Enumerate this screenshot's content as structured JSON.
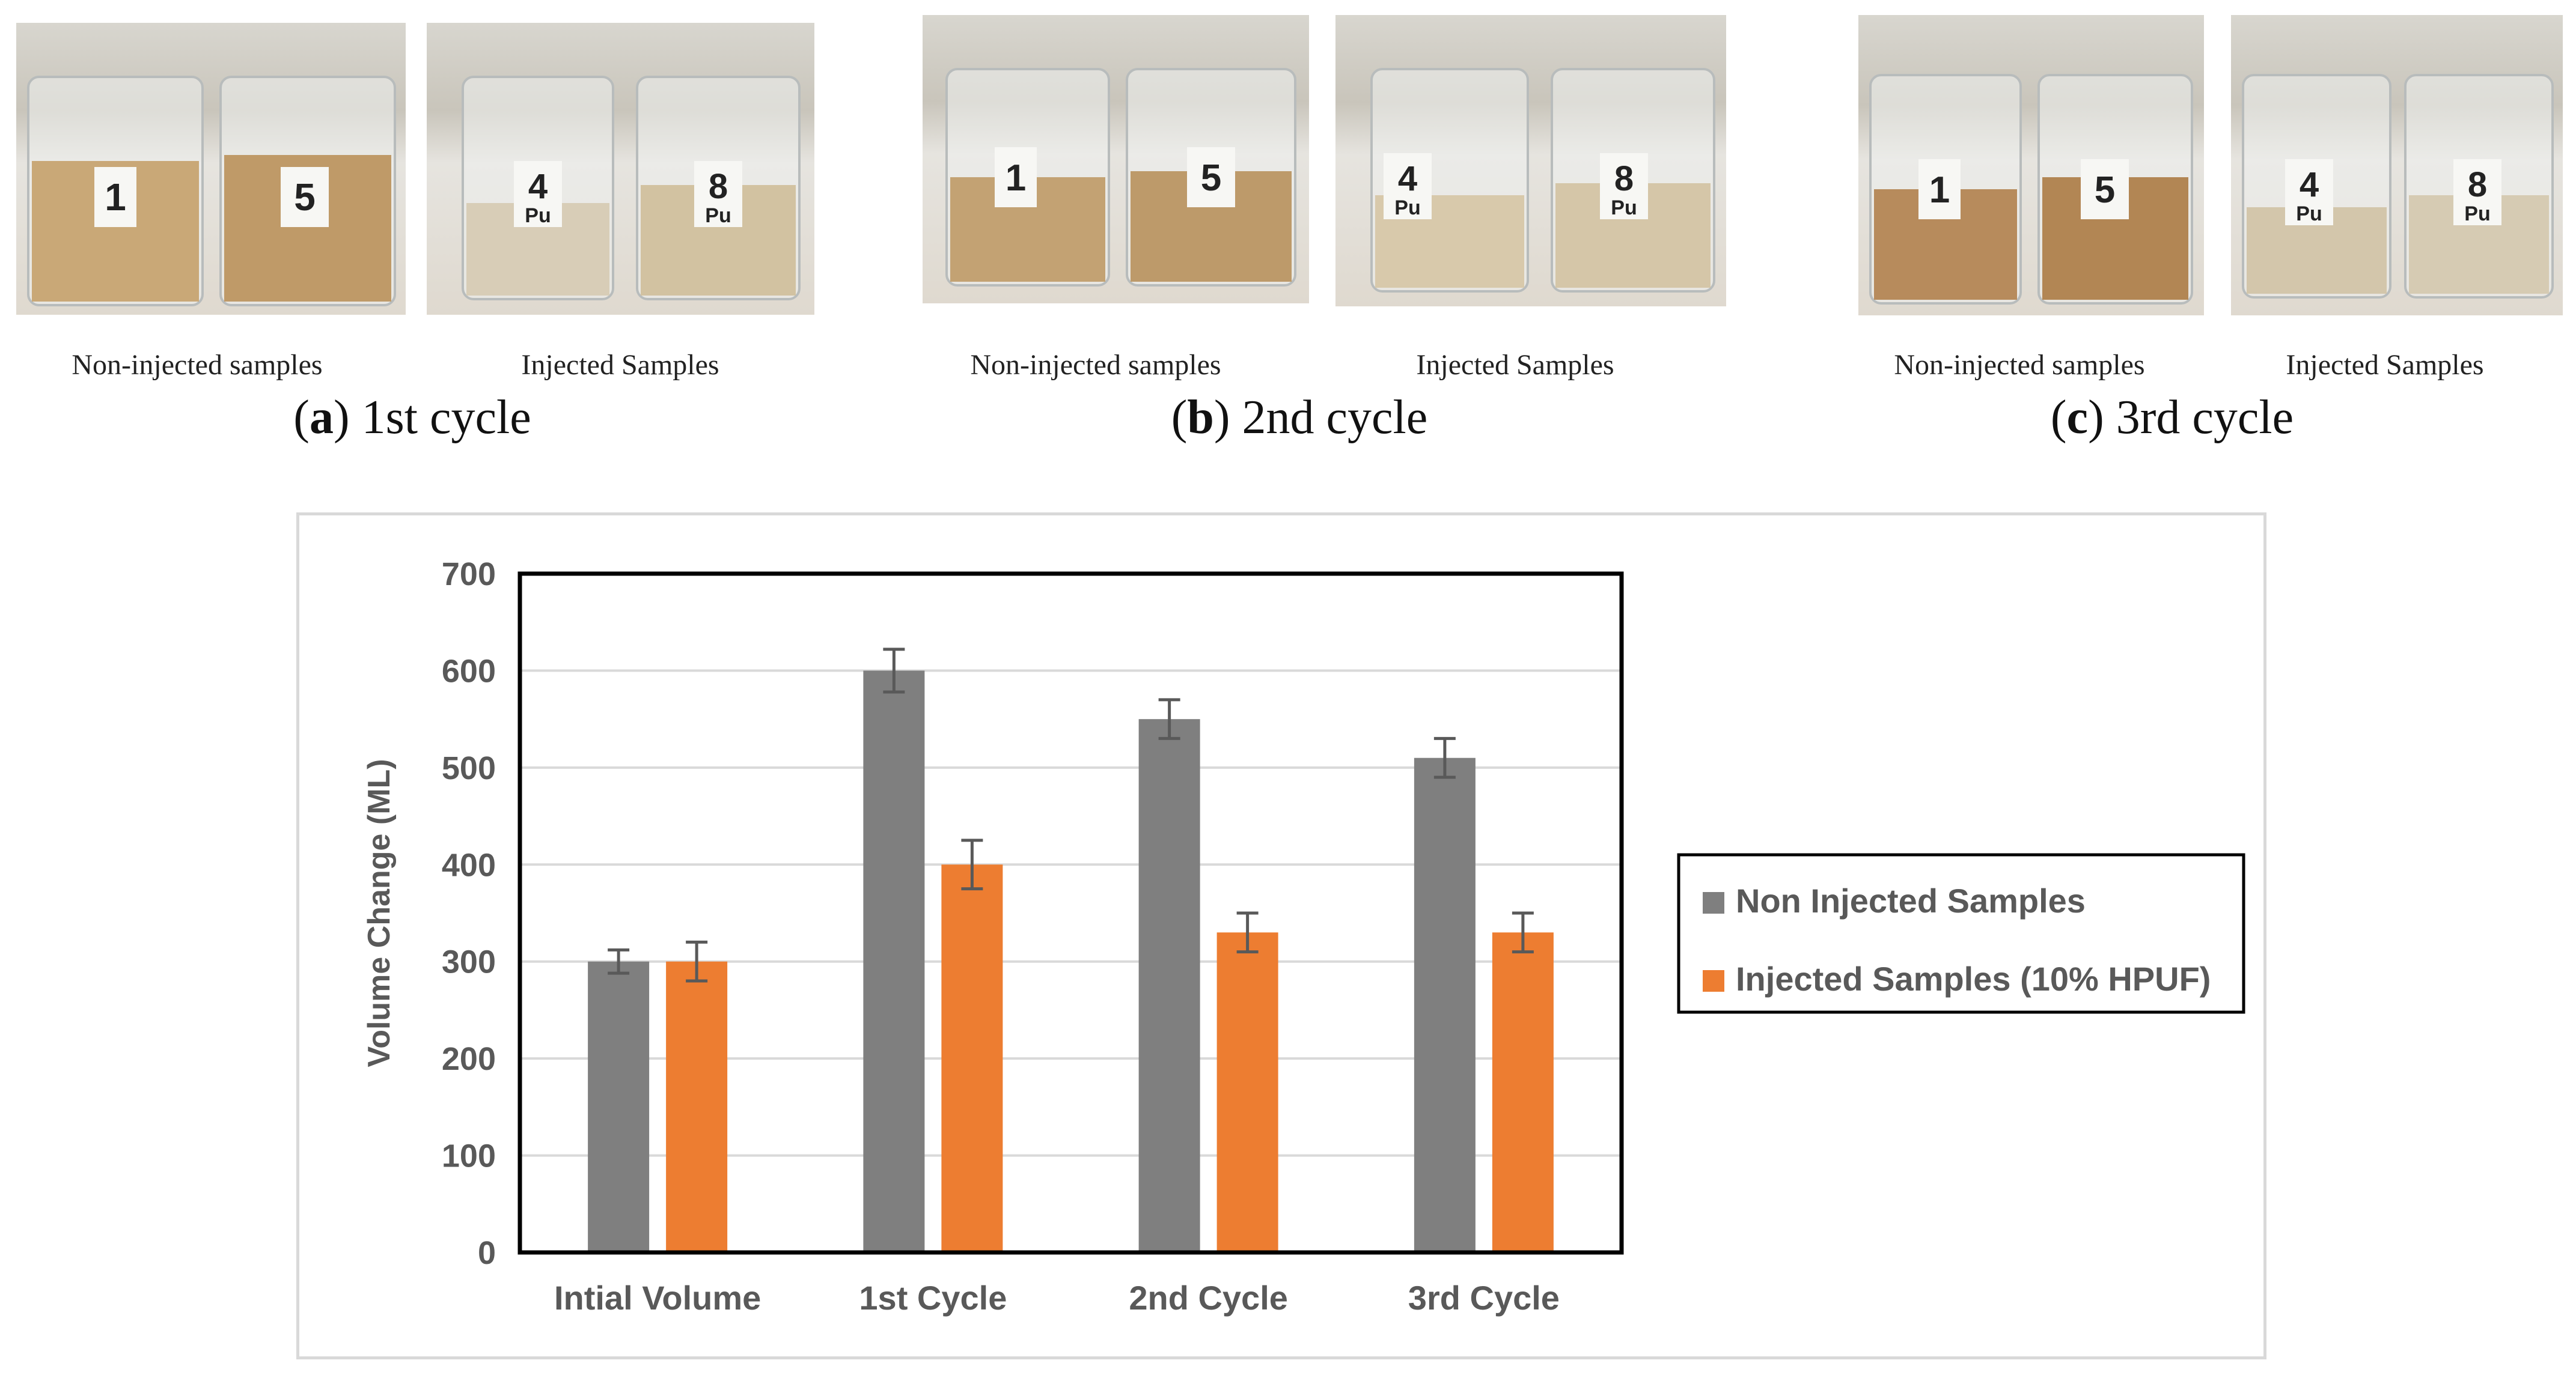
{
  "panels": [
    {
      "left_label": "Non-injected samples",
      "right_label": "Injected Samples",
      "caption_letter": "a",
      "caption_text": " 1st cycle"
    },
    {
      "left_label": "Non-injected samples",
      "right_label": "Injected Samples",
      "caption_letter": "b",
      "caption_text": " 2nd cycle"
    },
    {
      "left_label": "Non-injected samples",
      "right_label": "Injected Samples",
      "caption_letter": "c",
      "caption_text": " 3rd cycle"
    }
  ],
  "beaker_labels": [
    "1",
    "5",
    "4",
    "8",
    "Pu"
  ],
  "colors": {
    "non_injected": "#7f7f7f",
    "injected": "#ed7d31",
    "axis_text": "#595959",
    "grid": "#d9d9d9"
  },
  "chart_data": {
    "type": "bar",
    "categories": [
      "Intial Volume",
      "1st Cycle",
      "2nd Cycle",
      "3rd Cycle"
    ],
    "series": [
      {
        "name": "Non Injected Samples",
        "values": [
          300,
          600,
          550,
          510
        ],
        "errors": [
          12,
          22,
          20,
          20
        ]
      },
      {
        "name": "Injected Samples (10% HPUF)",
        "values": [
          300,
          400,
          330,
          330
        ],
        "errors": [
          20,
          25,
          20,
          20
        ]
      }
    ],
    "title": "",
    "xlabel": "",
    "ylabel": "Volume Change (ML)",
    "ylim": [
      0,
      700
    ],
    "yticks": [
      0,
      100,
      200,
      300,
      400,
      500,
      600,
      700
    ],
    "grid": true,
    "legend": "right"
  }
}
